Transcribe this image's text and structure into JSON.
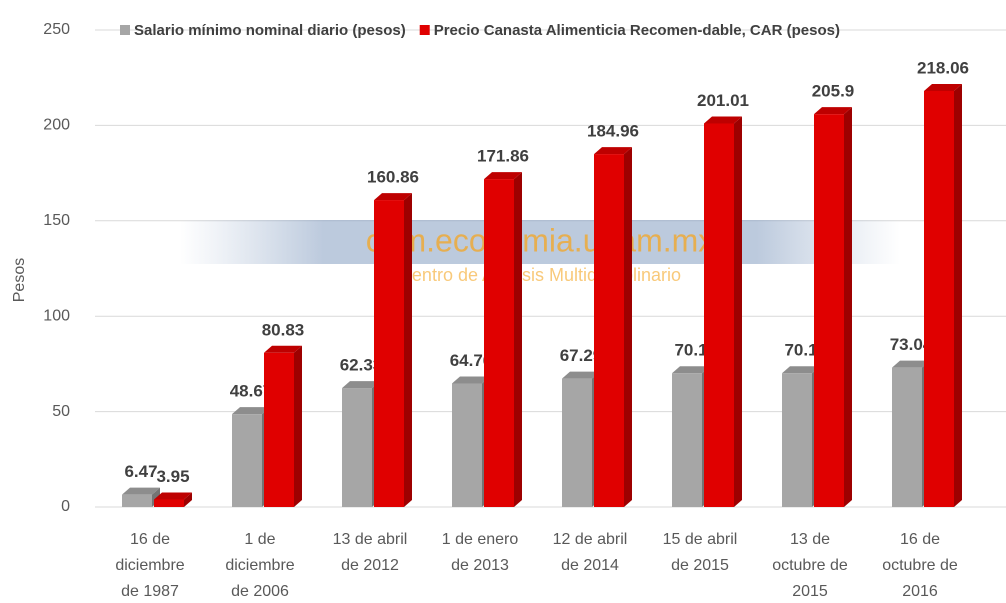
{
  "chart_data": {
    "type": "bar3d",
    "y_label": "Pesos",
    "categories": [
      [
        "16 de",
        "diciembre",
        "de 1987"
      ],
      [
        "1 de",
        "diciembre",
        "de 2006"
      ],
      [
        "13 de abril",
        "de 2012"
      ],
      [
        "1 de enero",
        "de 2013"
      ],
      [
        "12 de abril",
        "de 2014"
      ],
      [
        "15 de abril",
        "de 2015"
      ],
      [
        "13 de",
        "octubre de",
        "2015"
      ],
      [
        "16 de",
        "octubre de",
        "2016"
      ]
    ],
    "series": [
      {
        "name": "Salario mínimo nominal diario  (pesos)",
        "color": "#a6a6a6",
        "values": [
          6.47,
          48.67,
          62.33,
          64.76,
          67.29,
          70.1,
          70.1,
          73.04
        ]
      },
      {
        "name": "Precio Canasta Alimenticia Recomen-dable, CAR (pesos)",
        "color": "#e00000",
        "values": [
          3.95,
          80.83,
          160.86,
          171.86,
          184.96,
          201.01,
          205.9,
          218.06
        ]
      }
    ],
    "ylim": [
      0,
      250
    ],
    "yticks": [
      0,
      50,
      100,
      150,
      200,
      250
    ],
    "grid": true,
    "legend": "top",
    "annotations": [
      "cam.economia.unam.mx",
      "Centro de Analisis Multidisciplinario"
    ]
  }
}
